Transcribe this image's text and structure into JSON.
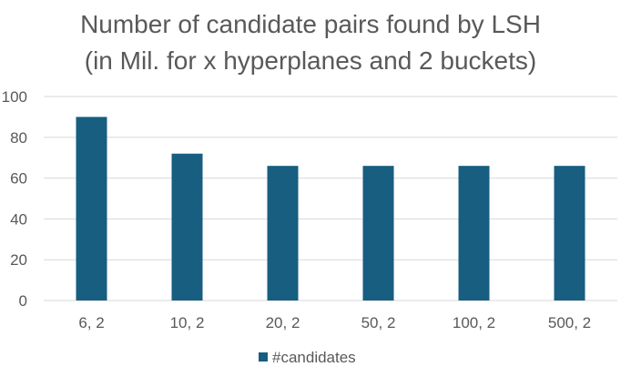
{
  "colors": {
    "bar": "#175E80",
    "grid": "#D9D9D9",
    "text": "#595959"
  },
  "chart_data": {
    "type": "bar",
    "title": "Number of candidate pairs found by LSH",
    "subtitle": "(in Mil. for x hyperplanes and 2 buckets)",
    "categories": [
      "6, 2",
      "10, 2",
      "20, 2",
      "50, 2",
      "100, 2",
      "500, 2"
    ],
    "series": [
      {
        "name": "#candidates",
        "values": [
          90,
          72,
          66,
          66,
          66,
          66
        ]
      }
    ],
    "ylim": [
      0,
      100
    ],
    "yticks": [
      0,
      20,
      40,
      60,
      80,
      100
    ],
    "grid": true,
    "legend": "bottom"
  }
}
